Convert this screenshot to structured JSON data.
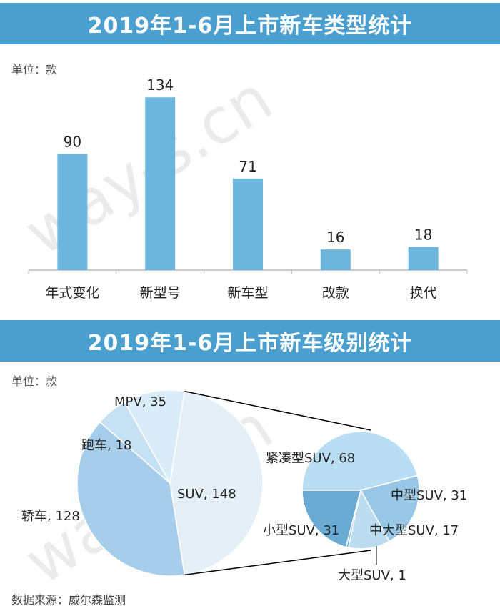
{
  "header": {
    "title1": "2019年1-6月上市新车类型统计",
    "title2": "2019年1-6月上市新车级别统计"
  },
  "units": {
    "unit1": "单位：款",
    "unit2": "单位：款"
  },
  "footer": {
    "source": "数据来源：威尔森监测"
  },
  "watermark": "way-s.cn",
  "colors": {
    "banner": "#4a9fcf",
    "bar": "#6db5dc",
    "pie_sedan": "#a6cde9",
    "pie_sports": "#c6e1f2",
    "pie_mpv": "#d9ecf7",
    "pie_suv": "#e5eff7",
    "sub_compact": "#b9def3",
    "sub_mid": "#98c7e6",
    "sub_midlarge": "#bcdcf0",
    "sub_large": "#7fb8de",
    "sub_small": "#6aaad3"
  },
  "chart_data": [
    {
      "type": "bar",
      "categories": [
        "年式变化",
        "新型号",
        "新车型",
        "改款",
        "换代"
      ],
      "values": [
        90,
        134,
        71,
        16,
        18
      ],
      "value_labels": [
        "90",
        "134",
        "71",
        "16",
        "18"
      ],
      "ylim": [
        0,
        150
      ],
      "grid": false
    },
    {
      "type": "pie",
      "labels": [
        "SUV",
        "轿车",
        "跑车",
        "MPV"
      ],
      "values": [
        148,
        128,
        18,
        35
      ],
      "display_labels": [
        "SUV, 148",
        "轿车, 128",
        "跑车, 18",
        "MPV, 35"
      ],
      "breakdown_of": "SUV",
      "breakdown": {
        "labels": [
          "紧凑型SUV",
          "中型SUV",
          "中大型SUV",
          "大型SUV",
          "小型SUV"
        ],
        "values": [
          68,
          31,
          17,
          1,
          31
        ],
        "display_labels": [
          "紧凑型SUV, 68",
          "中型SUV, 31",
          "中大型SUV, 17",
          "大型SUV, 1",
          "小型SUV, 31"
        ]
      }
    }
  ]
}
